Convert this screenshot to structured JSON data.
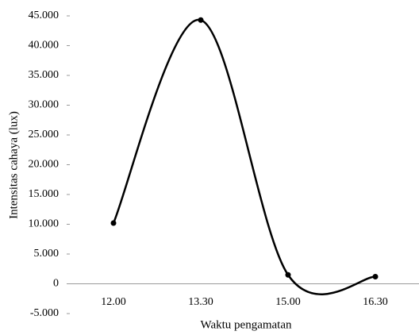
{
  "chart_data": {
    "type": "line",
    "x_label": "Waktu pengamatan",
    "y_label": "Intensitas cahaya  (lux)",
    "categories": [
      "12.00",
      "13.30",
      "15.00",
      "16.30"
    ],
    "series": [
      {
        "name": "Intensitas cahaya",
        "color": "#000000",
        "values": [
          10200,
          44300,
          1500,
          1200
        ]
      }
    ],
    "smooth": true,
    "ylim": [
      -5000,
      45000
    ],
    "yticks": [
      {
        "value": -5000,
        "label": "-5.000"
      },
      0,
      {
        "value": 5000,
        "label": "5.000"
      },
      {
        "value": 10000,
        "label": "10.000"
      },
      {
        "value": 15000,
        "label": "15.000"
      },
      {
        "value": 20000,
        "label": "20.000"
      },
      {
        "value": 25000,
        "label": "25.000"
      },
      {
        "value": 30000,
        "label": "30.000"
      },
      {
        "value": 35000,
        "label": "35.000"
      },
      {
        "value": 40000,
        "label": "40.000"
      },
      {
        "value": 45000,
        "label": "45.000"
      }
    ]
  }
}
